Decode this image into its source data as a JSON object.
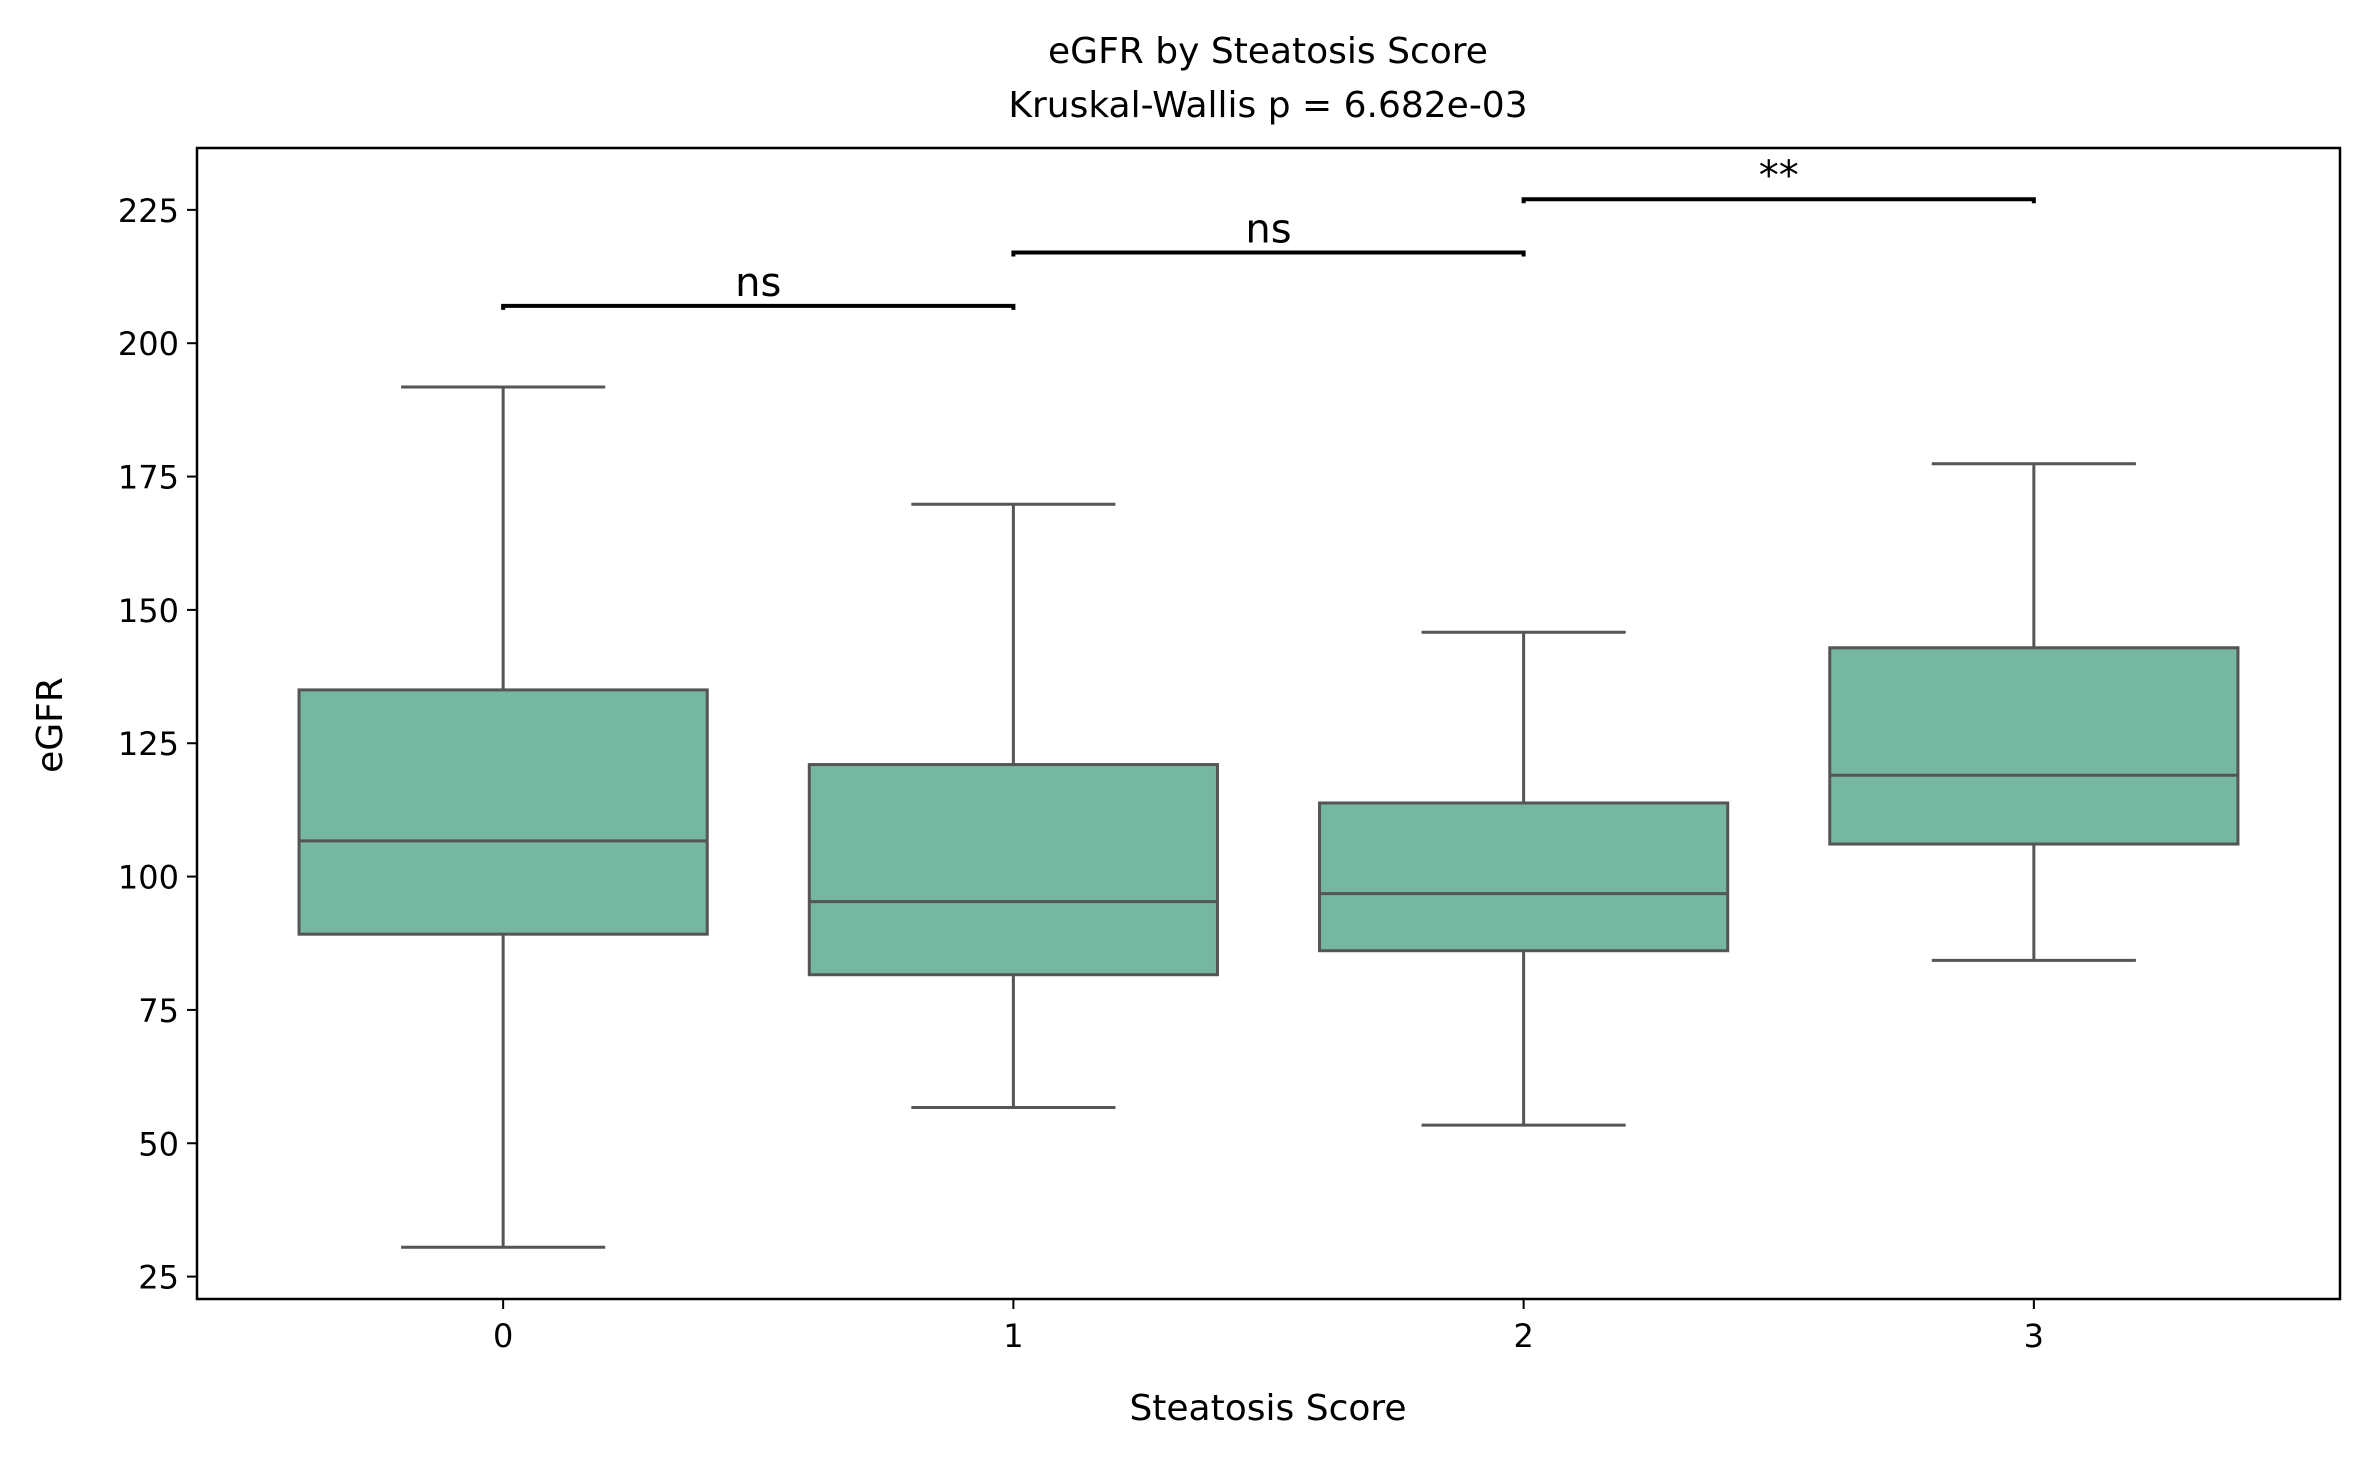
{
  "chart_data": {
    "type": "box",
    "title": "eGFR by Steatosis Score",
    "subtitle": "Kruskal-Wallis p = 6.682e-03",
    "xlabel": "Steatosis Score",
    "ylabel": "eGFR",
    "categories": [
      "0",
      "1",
      "2",
      "3"
    ],
    "ylim": [
      20.8,
      236.6
    ],
    "yticks": [
      25,
      50,
      75,
      100,
      125,
      150,
      175,
      200,
      225
    ],
    "grid": false,
    "box_color": "#76b7a2",
    "line_color": "#555555",
    "boxes": [
      {
        "category": "0",
        "whisker_low": 30.5,
        "q1": 89.2,
        "median": 106.7,
        "q3": 135.0,
        "whisker_high": 191.8
      },
      {
        "category": "1",
        "whisker_low": 56.7,
        "q1": 81.6,
        "median": 95.3,
        "q3": 121.0,
        "whisker_high": 169.8
      },
      {
        "category": "2",
        "whisker_low": 53.4,
        "q1": 86.1,
        "median": 96.8,
        "q3": 113.8,
        "whisker_high": 145.8
      },
      {
        "category": "3",
        "whisker_low": 84.3,
        "q1": 106.1,
        "median": 119.0,
        "q3": 142.9,
        "whisker_high": 177.4
      }
    ],
    "annotations": [
      {
        "from": 0,
        "to": 1,
        "y": 207.0,
        "label": "ns"
      },
      {
        "from": 1,
        "to": 2,
        "y": 217.0,
        "label": "ns"
      },
      {
        "from": 2,
        "to": 3,
        "y": 227.0,
        "label": "**"
      }
    ]
  }
}
